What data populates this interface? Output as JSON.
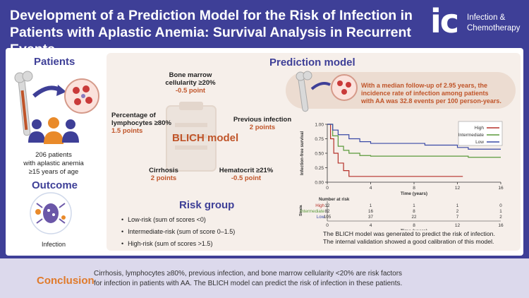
{
  "header": {
    "title_line1": "Development of a Prediction Model for the Risk of Infection in",
    "title_line2": "Patients with Aplastic Anemia: Survival Analysis in Recurrent Events",
    "logo_mark": "ic",
    "logo_line1": "Infection &",
    "logo_line2": "Chemotherapy"
  },
  "patients": {
    "title": "Patients",
    "line1": "206 patients",
    "line2": "with aplastic anemia",
    "line3": "≥15 years of age"
  },
  "outcome": {
    "title": "Outcome",
    "label": "Infection"
  },
  "model": {
    "title": "Prediction model",
    "name": "BLICH model",
    "factors": {
      "bone_marrow": {
        "l1": "Bone marrow",
        "l2": "cellularity ≥20%",
        "pts": "-0.5 point"
      },
      "lymphocytes": {
        "l1": "Percentage of",
        "l2": "lymphocytes ≥80%",
        "pts": "1.5 points"
      },
      "previous": {
        "l1": "Previous infection",
        "pts": "2 points"
      },
      "cirrhosis": {
        "l1": "Cirrhosis",
        "pts": "2 points"
      },
      "hematocrit": {
        "l1": "Hematocrit ≥21%",
        "pts": "-0.5 point"
      }
    },
    "followup_line1": "With a median follow-up of 2.95 years, the",
    "followup_line2": "incidence rate of infection among patients",
    "followup_line3": "with AA was 32.8 events per 100 person-years."
  },
  "risk_group": {
    "title": "Risk group",
    "items": [
      "Low-risk (sum of scores <0)",
      "Intermediate-risk (sum of score 0–1.5)",
      "High-risk (sum of scores >1.5)"
    ]
  },
  "caption": {
    "line1": "The BLICH model was generated to predict the risk of infection.",
    "line2": "The internal validation showed a good calibration of this model."
  },
  "conclusion": {
    "label": "Conclusion",
    "line1": "Cirrhosis, lymphocytes ≥80%, previous infection, and bone marrow cellularity <20% are risk factors",
    "line2": "for infection in patients with AA. The BLICH model can predict the risk of infection in these patients."
  },
  "colors": {
    "primary": "#3e3f97",
    "accent": "#c0552a",
    "high": "#b5312a",
    "intermediate": "#5a9a3a",
    "low": "#3a4aa6"
  },
  "chart_data": {
    "type": "line",
    "ylabel": "Infection-free survival",
    "xlabel": "Time (years)",
    "xlim": [
      0,
      16
    ],
    "ylim": [
      0,
      1
    ],
    "x_ticks": [
      "0",
      "4",
      "8",
      "12",
      "16"
    ],
    "y_ticks": [
      "0.00",
      "0.25",
      "0.50",
      "0.75",
      "1.00"
    ],
    "legend": [
      "High",
      "Intermediate",
      "Low"
    ],
    "series": [
      {
        "name": "High",
        "x": [
          0,
          0.3,
          0.6,
          1.0,
          1.5,
          2.0,
          12.5
        ],
        "y": [
          1.0,
          0.75,
          0.5,
          0.33,
          0.2,
          0.1,
          0.1
        ]
      },
      {
        "name": "Intermediate",
        "x": [
          0,
          0.5,
          1.0,
          1.5,
          2.0,
          3.0,
          4.0,
          8.0,
          13.0,
          16.0
        ],
        "y": [
          1.0,
          0.8,
          0.62,
          0.55,
          0.5,
          0.46,
          0.45,
          0.45,
          0.43,
          0.43
        ]
      },
      {
        "name": "Low",
        "x": [
          0,
          0.5,
          1.0,
          2.0,
          3.0,
          4.0,
          7.0,
          9.0,
          12.0,
          13.0,
          16.0
        ],
        "y": [
          1.0,
          0.9,
          0.82,
          0.75,
          0.7,
          0.67,
          0.67,
          0.64,
          0.6,
          0.57,
          0.57
        ]
      }
    ],
    "risk_table": {
      "title": "Number at risk",
      "strata_label": "Strata",
      "rows": [
        {
          "name": "High",
          "values": [
            "12",
            "1",
            "1",
            "1",
            "0"
          ]
        },
        {
          "name": "Intermediate",
          "values": [
            "82",
            "16",
            "8",
            "2",
            "1"
          ]
        },
        {
          "name": "Low",
          "values": [
            "105",
            "37",
            "22",
            "7",
            "2"
          ]
        }
      ]
    }
  }
}
